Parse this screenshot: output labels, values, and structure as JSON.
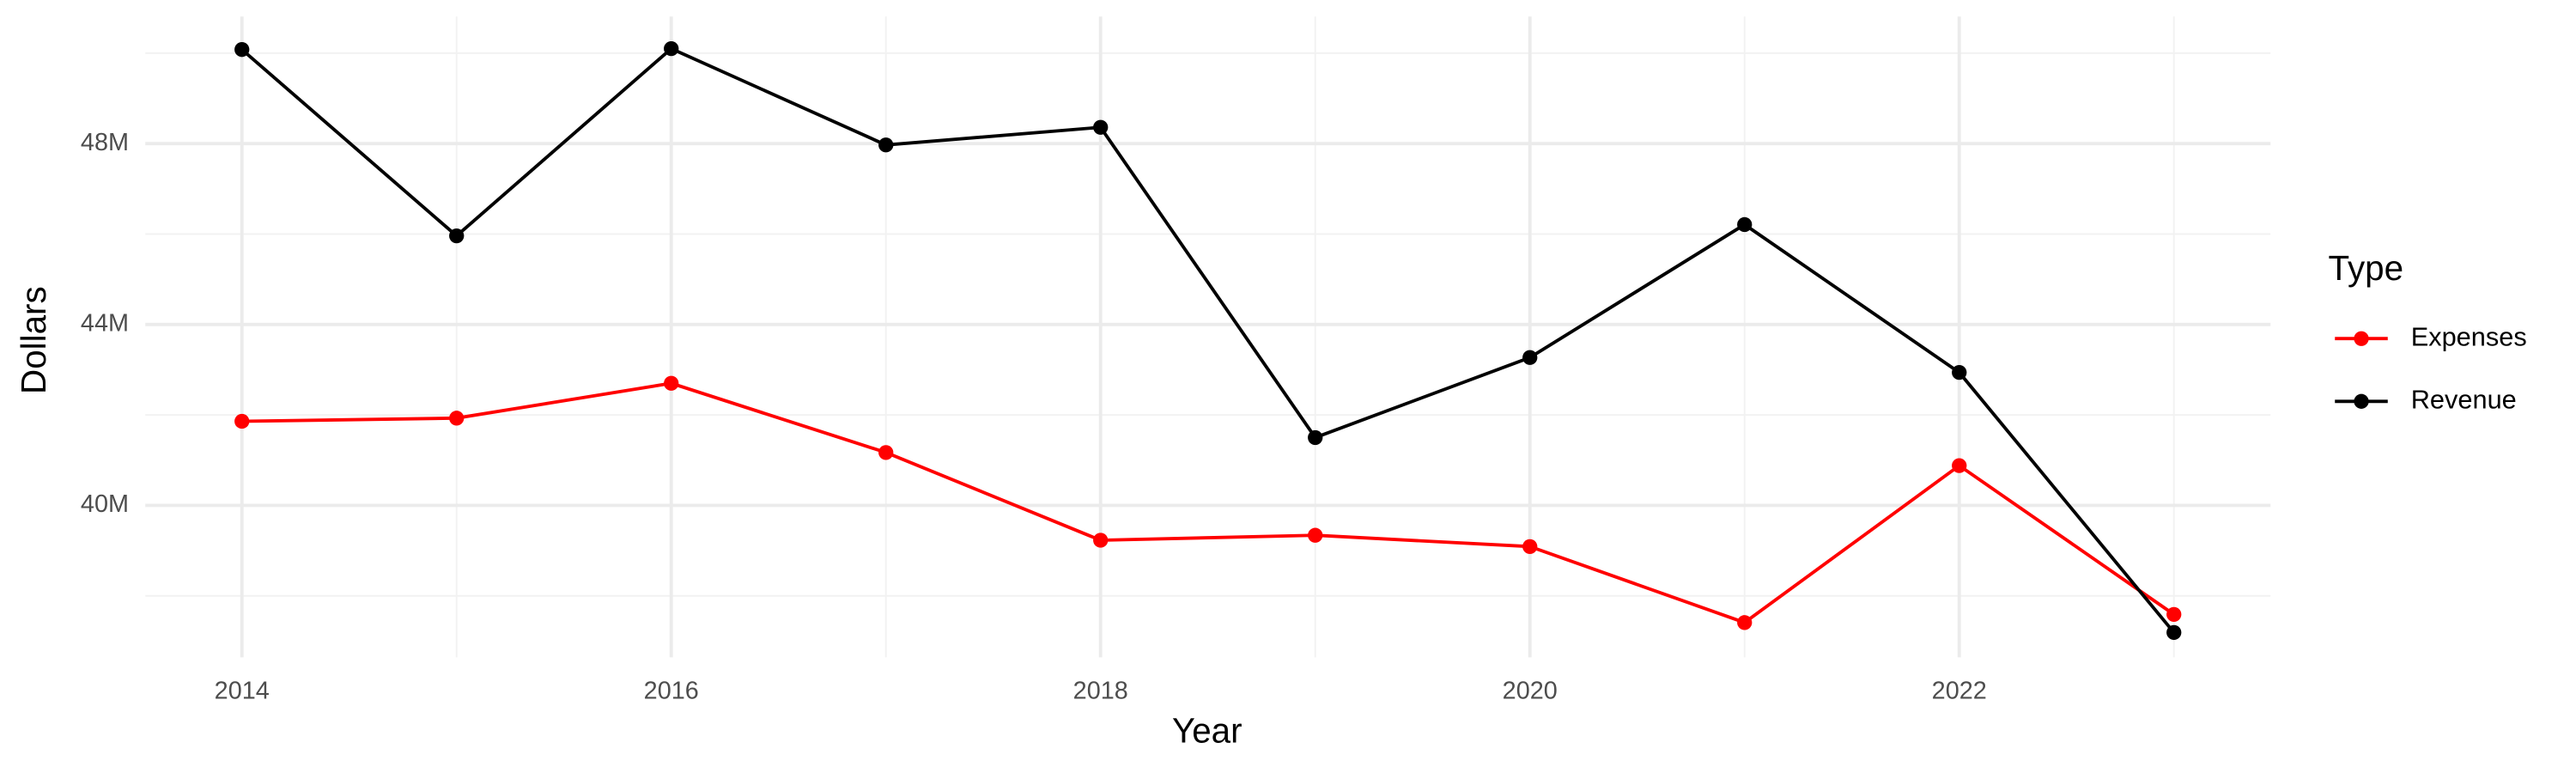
{
  "chart_data": {
    "type": "line",
    "x_label": "Year",
    "y_label": "Dollars",
    "legend_title": "Type",
    "legend_position": "right",
    "grid": true,
    "x": [
      2014,
      2015,
      2016,
      2017,
      2018,
      2019,
      2020,
      2021,
      2022,
      2023
    ],
    "series": [
      {
        "name": "Expenses",
        "color": "#ff0000",
        "values": [
          41860000,
          41930000,
          42700000,
          41170000,
          39230000,
          39340000,
          39090000,
          37410000,
          40880000,
          37590000
        ]
      },
      {
        "name": "Revenue",
        "color": "#000000",
        "values": [
          50080000,
          45960000,
          50100000,
          47970000,
          48360000,
          41500000,
          43270000,
          46210000,
          42940000,
          37190000
        ]
      }
    ],
    "xlim": [
      2013.55,
      2023.45
    ],
    "xticks": [
      2014,
      2016,
      2018,
      2020,
      2022
    ],
    "x_minor_ticks": [
      2015,
      2017,
      2019,
      2021,
      2023
    ],
    "ylim": [
      36640000,
      50810000
    ],
    "yticks": [
      {
        "value": 40000000,
        "label": "40M"
      },
      {
        "value": 44000000,
        "label": "44M"
      },
      {
        "value": 48000000,
        "label": "48M"
      }
    ],
    "y_minor_ticks": [
      38000000,
      42000000,
      46000000,
      50000000
    ]
  }
}
